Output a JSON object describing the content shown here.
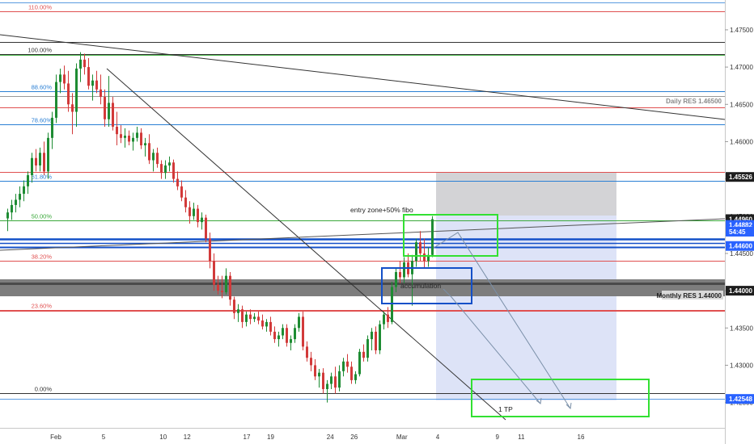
{
  "chart_data": {
    "type": "candlestick",
    "instrument_hint": "",
    "y_axis": {
      "range": [
        1.4216,
        1.479
      ],
      "scale": "linear",
      "side": "right",
      "ticks": [
        "1.47500",
        "1.47000",
        "1.46500",
        "1.46000",
        "1.45500",
        "1.45000",
        "1.44500",
        "1.44000",
        "1.43500",
        "1.43000",
        "1.42500"
      ]
    },
    "x_axis": {
      "range_days": [
        "2024-02-01",
        "2024-03-17"
      ],
      "ticks": [
        {
          "date": "2024-02-01",
          "label": "Feb"
        },
        {
          "date": "2024-02-05",
          "label": "5"
        },
        {
          "date": "2024-02-10",
          "label": "10"
        },
        {
          "date": "2024-02-12",
          "label": "12"
        },
        {
          "date": "2024-02-17",
          "label": "17"
        },
        {
          "date": "2024-02-19",
          "label": "19"
        },
        {
          "date": "2024-02-24",
          "label": "24"
        },
        {
          "date": "2024-02-26",
          "label": "26"
        },
        {
          "date": "2024-03-01",
          "label": "Mar"
        },
        {
          "date": "2024-03-04",
          "label": "4"
        },
        {
          "date": "2024-03-09",
          "label": "9"
        },
        {
          "date": "2024-03-11",
          "label": "11"
        },
        {
          "date": "2024-03-16",
          "label": "16"
        }
      ]
    },
    "grid": false,
    "price_tags": [
      {
        "label": "1.45526",
        "value": 1.45526,
        "style": "dark"
      },
      {
        "label": "1.44960",
        "value": 1.4496,
        "style": "dark"
      },
      {
        "label": "1.44882",
        "value": 1.44882,
        "style": "blue"
      },
      {
        "label": "54:45",
        "value": 1.44792,
        "style": "blue"
      },
      {
        "label": "1.44600",
        "value": 1.446,
        "style": "blue"
      },
      {
        "label": "1.44000",
        "value": 1.44,
        "style": "dark"
      },
      {
        "label": "1.42548",
        "value": 1.42548,
        "style": "blue"
      }
    ],
    "levels": [
      {
        "label": "Daily RES 1.46500",
        "value": 1.465,
        "color": "#8a8a8a"
      },
      {
        "label": "Monthly RES 1.44000",
        "value": 1.44,
        "color": "#222222"
      }
    ],
    "fibonacci": [
      {
        "label": "110.00%",
        "value": 1.4775,
        "color": "#e05050"
      },
      {
        "label": "100.00%",
        "value": 1.47175,
        "color": "#333333"
      },
      {
        "label": "88.60%",
        "value": 1.4668,
        "color": "#2a7fd4"
      },
      {
        "label": "78.60%",
        "value": 1.46235,
        "color": "#2a7fd4"
      },
      {
        "label": "61.80%",
        "value": 1.4547,
        "color": "#2a7fd4"
      },
      {
        "label": "50.00%",
        "value": 1.4494,
        "color": "#3aa83a"
      },
      {
        "label": "38.20%",
        "value": 1.444,
        "color": "#e05050"
      },
      {
        "label": "23.60%",
        "value": 1.4374,
        "color": "#e05050"
      },
      {
        "label": "0.00%",
        "value": 1.4263,
        "color": "#333333"
      }
    ],
    "annotations": [
      {
        "text": "entry zone+50% fibo"
      },
      {
        "text": "accumulation"
      },
      {
        "text": "1 TP"
      }
    ],
    "candles": [
      [
        1.4497,
        1.451,
        1.448,
        1.4505
      ],
      [
        1.4505,
        1.4522,
        1.4495,
        1.4515
      ],
      [
        1.4515,
        1.453,
        1.4505,
        1.4522
      ],
      [
        1.4522,
        1.454,
        1.4512,
        1.453
      ],
      [
        1.453,
        1.4548,
        1.452,
        1.454
      ],
      [
        1.454,
        1.456,
        1.453,
        1.4555
      ],
      [
        1.4555,
        1.4585,
        1.4545,
        1.4578
      ],
      [
        1.4578,
        1.459,
        1.456,
        1.4568
      ],
      [
        1.4568,
        1.4592,
        1.456,
        1.4585
      ],
      [
        1.4585,
        1.46,
        1.4555,
        1.456
      ],
      [
        1.456,
        1.4612,
        1.455,
        1.4605
      ],
      [
        1.4605,
        1.464,
        1.459,
        1.4632
      ],
      [
        1.4632,
        1.469,
        1.4625,
        1.468
      ],
      [
        1.468,
        1.4698,
        1.4665,
        1.469
      ],
      [
        1.469,
        1.4702,
        1.467,
        1.4678
      ],
      [
        1.4678,
        1.4695,
        1.464,
        1.465
      ],
      [
        1.465,
        1.4665,
        1.461,
        1.464
      ],
      [
        1.464,
        1.4705,
        1.462,
        1.4698
      ],
      [
        1.4698,
        1.472,
        1.468,
        1.471
      ],
      [
        1.471,
        1.4718,
        1.469,
        1.47
      ],
      [
        1.47,
        1.4712,
        1.467,
        1.4675
      ],
      [
        1.4675,
        1.469,
        1.4655,
        1.4682
      ],
      [
        1.4682,
        1.4695,
        1.4665,
        1.467
      ],
      [
        1.467,
        1.469,
        1.465,
        1.466
      ],
      [
        1.466,
        1.467,
        1.462,
        1.463
      ],
      [
        1.463,
        1.4688,
        1.462,
        1.4652
      ],
      [
        1.4652,
        1.466,
        1.4615,
        1.462
      ],
      [
        1.462,
        1.464,
        1.4595,
        1.461
      ],
      [
        1.461,
        1.4622,
        1.4598,
        1.4605
      ],
      [
        1.4605,
        1.4618,
        1.4592,
        1.4608
      ],
      [
        1.4608,
        1.4615,
        1.4595,
        1.46
      ],
      [
        1.46,
        1.4612,
        1.4588,
        1.4605
      ],
      [
        1.4605,
        1.462,
        1.46,
        1.4612
      ],
      [
        1.4612,
        1.4618,
        1.459,
        1.4595
      ],
      [
        1.4595,
        1.4605,
        1.458,
        1.4598
      ],
      [
        1.4598,
        1.461,
        1.457,
        1.4575
      ],
      [
        1.4575,
        1.459,
        1.456,
        1.4585
      ],
      [
        1.4585,
        1.4592,
        1.4565,
        1.457
      ],
      [
        1.457,
        1.4575,
        1.455,
        1.4558
      ],
      [
        1.4558,
        1.4575,
        1.455,
        1.4568
      ],
      [
        1.4568,
        1.458,
        1.456,
        1.4572
      ],
      [
        1.4572,
        1.4576,
        1.4545,
        1.455
      ],
      [
        1.455,
        1.456,
        1.4535,
        1.454
      ],
      [
        1.454,
        1.4548,
        1.452,
        1.4525
      ],
      [
        1.4525,
        1.4535,
        1.4505,
        1.4512
      ],
      [
        1.4512,
        1.452,
        1.449,
        1.45
      ],
      [
        1.45,
        1.4518,
        1.4495,
        1.451
      ],
      [
        1.451,
        1.4515,
        1.4485,
        1.4492
      ],
      [
        1.4492,
        1.4505,
        1.4482,
        1.4498
      ],
      [
        1.4498,
        1.4502,
        1.4465,
        1.447
      ],
      [
        1.447,
        1.4478,
        1.443,
        1.444
      ],
      [
        1.444,
        1.445,
        1.44,
        1.4408
      ],
      [
        1.4408,
        1.442,
        1.4395,
        1.44
      ],
      [
        1.44,
        1.442,
        1.439,
        1.4398
      ],
      [
        1.4398,
        1.443,
        1.4395,
        1.442
      ],
      [
        1.442,
        1.4425,
        1.438,
        1.4388
      ],
      [
        1.4388,
        1.4392,
        1.4362,
        1.437
      ],
      [
        1.437,
        1.4382,
        1.4358,
        1.4375
      ],
      [
        1.4375,
        1.438,
        1.435,
        1.4358
      ],
      [
        1.4358,
        1.4372,
        1.4352,
        1.4368
      ],
      [
        1.4368,
        1.4375,
        1.4355,
        1.4362
      ],
      [
        1.4362,
        1.437,
        1.4358,
        1.4365
      ],
      [
        1.4365,
        1.4372,
        1.4355,
        1.436
      ],
      [
        1.436,
        1.4368,
        1.4348,
        1.4352
      ],
      [
        1.4352,
        1.4362,
        1.4345,
        1.4358
      ],
      [
        1.4358,
        1.4365,
        1.434,
        1.4345
      ],
      [
        1.4345,
        1.4352,
        1.433,
        1.4335
      ],
      [
        1.4335,
        1.4345,
        1.4325,
        1.434
      ],
      [
        1.434,
        1.4355,
        1.4335,
        1.435
      ],
      [
        1.435,
        1.4355,
        1.4325,
        1.433
      ],
      [
        1.433,
        1.434,
        1.432,
        1.4335
      ],
      [
        1.4335,
        1.4355,
        1.433,
        1.435
      ],
      [
        1.435,
        1.437,
        1.4345,
        1.4365
      ],
      [
        1.4365,
        1.4372,
        1.432,
        1.4325
      ],
      [
        1.4325,
        1.4332,
        1.4305,
        1.431
      ],
      [
        1.431,
        1.4318,
        1.4292,
        1.43
      ],
      [
        1.43,
        1.4308,
        1.428,
        1.4285
      ],
      [
        1.4285,
        1.4295,
        1.427,
        1.429
      ],
      [
        1.429,
        1.4296,
        1.4262,
        1.4268
      ],
      [
        1.4268,
        1.428,
        1.425,
        1.4275
      ],
      [
        1.4275,
        1.429,
        1.4268,
        1.4285
      ],
      [
        1.4285,
        1.4298,
        1.4262,
        1.427
      ],
      [
        1.427,
        1.43,
        1.4265,
        1.4292
      ],
      [
        1.4292,
        1.431,
        1.4285,
        1.4305
      ],
      [
        1.4305,
        1.4315,
        1.429,
        1.4298
      ],
      [
        1.4298,
        1.4305,
        1.4275,
        1.428
      ],
      [
        1.428,
        1.4292,
        1.4275,
        1.4288
      ],
      [
        1.4288,
        1.4322,
        1.4285,
        1.4318
      ],
      [
        1.4318,
        1.4328,
        1.4305,
        1.431
      ],
      [
        1.431,
        1.434,
        1.4305,
        1.4335
      ],
      [
        1.4335,
        1.435,
        1.432,
        1.4345
      ],
      [
        1.4345,
        1.4352,
        1.4315,
        1.432
      ],
      [
        1.432,
        1.436,
        1.4315,
        1.4355
      ],
      [
        1.4355,
        1.4372,
        1.4348,
        1.4368
      ],
      [
        1.4368,
        1.4378,
        1.435,
        1.4358
      ],
      [
        1.4358,
        1.4412,
        1.4355,
        1.4405
      ],
      [
        1.4405,
        1.443,
        1.4398,
        1.4425
      ],
      [
        1.4425,
        1.444,
        1.441,
        1.4418
      ],
      [
        1.4418,
        1.4445,
        1.441,
        1.4438
      ],
      [
        1.4438,
        1.445,
        1.4418,
        1.4422
      ],
      [
        1.4422,
        1.4448,
        1.438,
        1.444
      ],
      [
        1.444,
        1.447,
        1.4432,
        1.4465
      ],
      [
        1.4465,
        1.448,
        1.444,
        1.445
      ],
      [
        1.445,
        1.447,
        1.443,
        1.444
      ],
      [
        1.444,
        1.4458,
        1.4432,
        1.4448
      ],
      [
        1.4448,
        1.45,
        1.4445,
        1.4496
      ]
    ]
  }
}
